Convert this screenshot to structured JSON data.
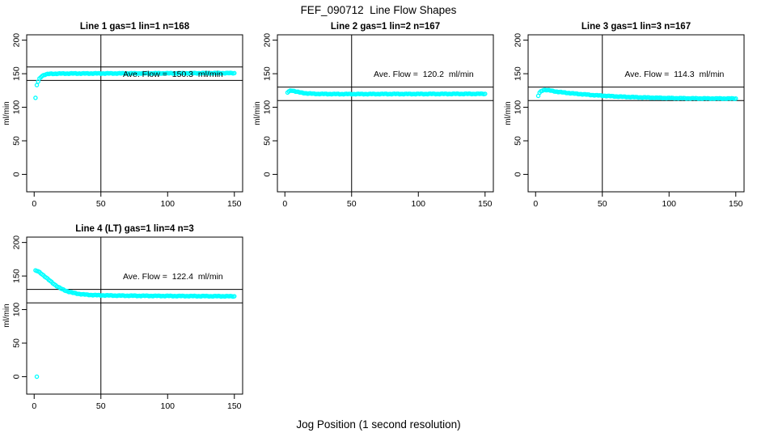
{
  "title": "FEF_090712  Line Flow Shapes",
  "xlabel": "Jog Position (1 second resolution)",
  "colors": {
    "points": "#00FFFF",
    "axis": "#000000",
    "background": "#FFFFFF"
  },
  "chart_data": [
    {
      "type": "scatter",
      "title": "Line 1 gas=1 lin=1 n=168",
      "annotation": "Ave. Flow =  150.3  ml/min",
      "ave_flow": 150.3,
      "ylabel": "ml/min",
      "xticks": [
        0,
        50,
        100,
        150
      ],
      "yticks": [
        0,
        50,
        100,
        150,
        200
      ],
      "xlim": [
        -5.6,
        156.2
      ],
      "ylim": [
        -26,
        208
      ],
      "vline": 50,
      "hlines": [
        140,
        160
      ],
      "annotation_pos": [
        104,
        150
      ],
      "outliers": [
        [
          1,
          114
        ],
        [
          2,
          133
        ]
      ],
      "points": [
        [
          3,
          138
        ],
        [
          4,
          142.5
        ],
        [
          5,
          145
        ],
        [
          6,
          146.8
        ],
        [
          7,
          147.8
        ],
        [
          8,
          148.6
        ],
        [
          9,
          149.1
        ],
        [
          10,
          149.4
        ],
        [
          12,
          149.8
        ],
        [
          15,
          150
        ],
        [
          20,
          150.2
        ],
        [
          30,
          150.3
        ],
        [
          50,
          150.4
        ],
        [
          75,
          150.5
        ],
        [
          100,
          150.6
        ],
        [
          125,
          150.8
        ],
        [
          150,
          150.9
        ]
      ]
    },
    {
      "type": "scatter",
      "title": "Line 2 gas=1 lin=2 n=167",
      "annotation": "Ave. Flow =  120.2  ml/min",
      "ave_flow": 120.2,
      "ylabel": "ml/min",
      "xticks": [
        0,
        50,
        100,
        150
      ],
      "yticks": [
        0,
        50,
        100,
        150,
        200
      ],
      "xlim": [
        -5.6,
        156.2
      ],
      "ylim": [
        -26,
        208
      ],
      "vline": 50,
      "hlines": [
        110,
        130
      ],
      "annotation_pos": [
        104,
        150
      ],
      "outliers": [],
      "points": [
        [
          2,
          122
        ],
        [
          3,
          123.5
        ],
        [
          4,
          124.5
        ],
        [
          5,
          125
        ],
        [
          6,
          124.7
        ],
        [
          7,
          124.2
        ],
        [
          8,
          123.6
        ],
        [
          10,
          122.6
        ],
        [
          12,
          121.8
        ],
        [
          15,
          121
        ],
        [
          18,
          120.5
        ],
        [
          22,
          120.1
        ],
        [
          30,
          119.8
        ],
        [
          40,
          119.7
        ],
        [
          60,
          119.7
        ],
        [
          80,
          119.8
        ],
        [
          100,
          119.8
        ],
        [
          125,
          119.9
        ],
        [
          150,
          120
        ]
      ]
    },
    {
      "type": "scatter",
      "title": "Line 3 gas=1 lin=3 n=167",
      "annotation": "Ave. Flow =  114.3  ml/min",
      "ave_flow": 114.3,
      "ylabel": "ml/min",
      "xticks": [
        0,
        50,
        100,
        150
      ],
      "yticks": [
        0,
        50,
        100,
        150,
        200
      ],
      "xlim": [
        -5.6,
        156.2
      ],
      "ylim": [
        -26,
        208
      ],
      "vline": 50,
      "hlines": [
        110,
        130
      ],
      "annotation_pos": [
        104,
        150
      ],
      "outliers": [
        [
          2,
          117
        ]
      ],
      "points": [
        [
          3,
          121.5
        ],
        [
          4,
          123.5
        ],
        [
          5,
          125
        ],
        [
          6,
          125.8
        ],
        [
          7,
          126
        ],
        [
          8,
          125.8
        ],
        [
          10,
          125.2
        ],
        [
          12,
          124.5
        ],
        [
          15,
          123.5
        ],
        [
          18,
          122.7
        ],
        [
          21,
          122
        ],
        [
          25,
          121.2
        ],
        [
          30,
          120.2
        ],
        [
          35,
          119.4
        ],
        [
          40,
          118.6
        ],
        [
          45,
          117.9
        ],
        [
          50,
          117.3
        ],
        [
          55,
          116.7
        ],
        [
          60,
          116.2
        ],
        [
          65,
          115.7
        ],
        [
          70,
          115.3
        ],
        [
          75,
          115
        ],
        [
          80,
          114.7
        ],
        [
          85,
          114.4
        ],
        [
          90,
          114.1
        ],
        [
          95,
          113.9
        ],
        [
          100,
          113.7
        ],
        [
          110,
          113.4
        ],
        [
          120,
          113.2
        ],
        [
          130,
          113.1
        ],
        [
          140,
          113
        ],
        [
          150,
          113
        ]
      ]
    },
    {
      "type": "scatter",
      "title": "Line 4 (LT) gas=1 lin=4 n=3",
      "annotation": "Ave. Flow =  122.4  ml/min",
      "ave_flow": 122.4,
      "ylabel": "ml/min",
      "xticks": [
        0,
        50,
        100,
        150
      ],
      "yticks": [
        0,
        50,
        100,
        150,
        200
      ],
      "xlim": [
        -5.6,
        156.2
      ],
      "ylim": [
        -26,
        208
      ],
      "vline": 50,
      "hlines": [
        110,
        130
      ],
      "annotation_pos": [
        104,
        150
      ],
      "outliers": [
        [
          2,
          0
        ]
      ],
      "points": [
        [
          1,
          158
        ],
        [
          2,
          157.6
        ],
        [
          3,
          156.8
        ],
        [
          4,
          155.6
        ],
        [
          5,
          154.2
        ],
        [
          6,
          152.6
        ],
        [
          7,
          151
        ],
        [
          8,
          149.3
        ],
        [
          9,
          147.6
        ],
        [
          10,
          145.9
        ],
        [
          11,
          144.2
        ],
        [
          12,
          142.6
        ],
        [
          13,
          141
        ],
        [
          14,
          139.4
        ],
        [
          15,
          137.9
        ],
        [
          16,
          136.4
        ],
        [
          17,
          135
        ],
        [
          18,
          133.7
        ],
        [
          19,
          132.5
        ],
        [
          20,
          131.4
        ],
        [
          21,
          130.4
        ],
        [
          22,
          129.5
        ],
        [
          23,
          128.7
        ],
        [
          24,
          127.9
        ],
        [
          25,
          127.2
        ],
        [
          26,
          126.6
        ],
        [
          27,
          126
        ],
        [
          28,
          125.5
        ],
        [
          29,
          125
        ],
        [
          30,
          124.6
        ],
        [
          32,
          123.9
        ],
        [
          34,
          123.3
        ],
        [
          36,
          122.8
        ],
        [
          38,
          122.4
        ],
        [
          40,
          122.1
        ],
        [
          43,
          121.8
        ],
        [
          46,
          121.5
        ],
        [
          50,
          121.3
        ],
        [
          55,
          121.1
        ],
        [
          60,
          120.9
        ],
        [
          70,
          120.7
        ],
        [
          80,
          120.5
        ],
        [
          90,
          120.4
        ],
        [
          100,
          120.3
        ],
        [
          110,
          120.2
        ],
        [
          120,
          120.1
        ],
        [
          130,
          120
        ],
        [
          140,
          119.9
        ],
        [
          150,
          119.8
        ]
      ]
    }
  ]
}
